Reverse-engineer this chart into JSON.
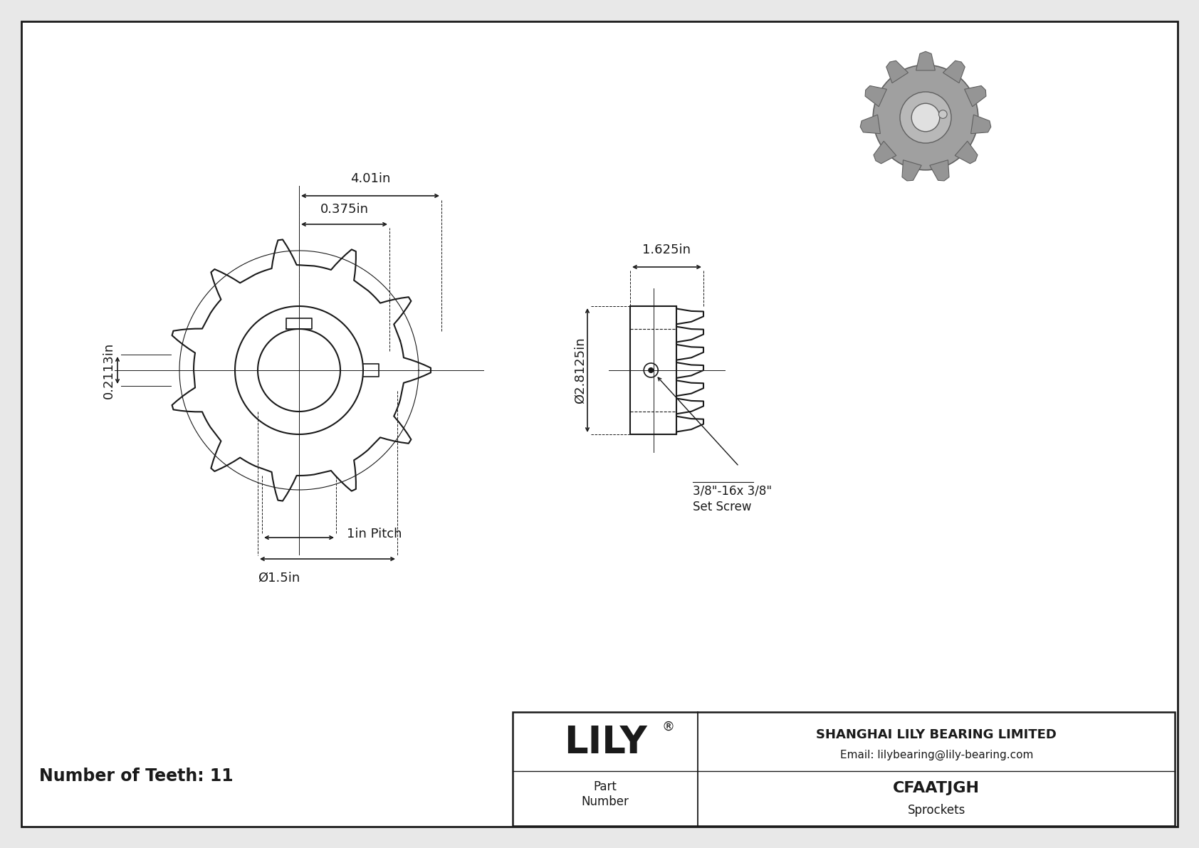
{
  "bg_color": "#e8e8e8",
  "drawing_bg": "#ffffff",
  "line_color": "#1a1a1a",
  "dim_color": "#1a1a1a",
  "part_number": "CFAATJGH",
  "part_type": "Sprockets",
  "company": "SHANGHAI LILY BEARING LIMITED",
  "email": "Email: lilybearing@lily-bearing.com",
  "num_teeth": "Number of Teeth: 11",
  "dim_4_01": "4.01in",
  "dim_0_375": "0.375in",
  "dim_0_2113": "0.2113in",
  "dim_1_625": "1.625in",
  "dim_2_8125": "Ø2.8125in",
  "dim_1_5": "Ø1.5in",
  "dim_1in_pitch": "1in Pitch",
  "set_screw_line1": "3/8\"-16x 3/8\"",
  "set_screw_line2": "Set Screw",
  "lily_text": "LILY",
  "reg_symbol": "®"
}
